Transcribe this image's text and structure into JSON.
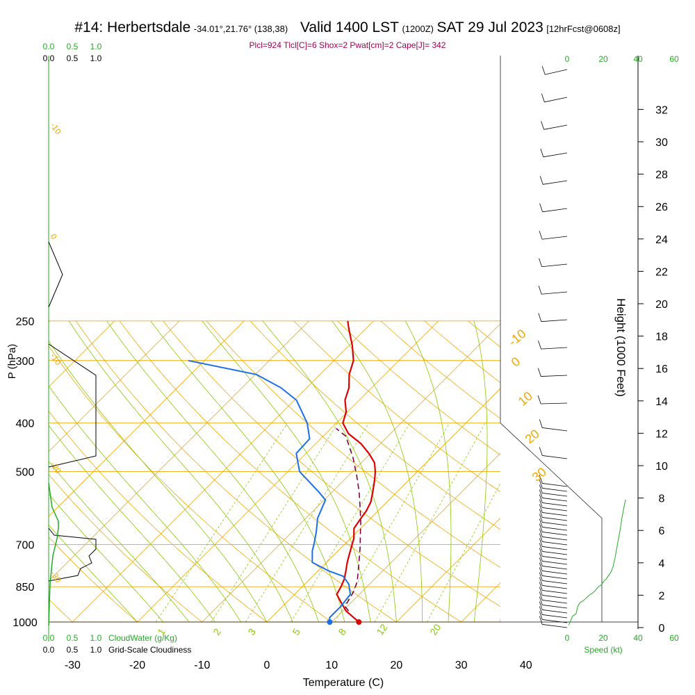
{
  "header": {
    "station": "#14: Herbertsdale",
    "coords": "-34.01°,21.76° (138,38)",
    "valid": "Valid 1400 LST",
    "zulu": "(1200Z)",
    "date": "SAT 29 Jul 2023",
    "forecast": "[12hrFcst@0608z]",
    "indices": "Plcl=924 Tlcl[C]=6 Shox=2 Pwat[cm]=2 Cape[J]= 342"
  },
  "colors": {
    "temperature": "#dd0000",
    "dewpoint": "#1a6fe8",
    "parcel": "#800040",
    "isotherm": "#f0a800",
    "dry_adiabat": "#f0a800",
    "moist_adiabat": "#88c800",
    "mixing_ratio": "#88c800",
    "wind_speed": "#22aa22",
    "cloud": "#22aa22"
  },
  "chart_data": {
    "type": "skew-t",
    "xlabel": "Temperature (C)",
    "ylabel": "P (hPa)",
    "y2label": "Height (1000 Feet)",
    "x_ticks": [
      "-30",
      "-20",
      "-10",
      "0",
      "10",
      "20",
      "30",
      "40"
    ],
    "y_ticks": [
      "250",
      "300",
      "400",
      "500",
      "700",
      "850",
      "1000"
    ],
    "height_ticks": [
      "0",
      "2",
      "4",
      "6",
      "8",
      "10",
      "12",
      "14",
      "16",
      "18",
      "20",
      "22",
      "24",
      "26",
      "28",
      "30",
      "32"
    ],
    "isotherm_labels": [
      "-10",
      "0",
      "10",
      "20",
      "30"
    ],
    "mixing_ratio_labels": [
      "1",
      "2",
      "3",
      "5",
      "8",
      "12",
      "20"
    ],
    "left_panel": {
      "top_scale_green": [
        "0.0",
        "0.5",
        "1.0"
      ],
      "top_scale_black": [
        "0.0",
        "0.5",
        "1.0"
      ],
      "bottom_scale_green": [
        "0.0",
        "0.5",
        "1.0"
      ],
      "bottom_scale_black": [
        "0.0",
        "0.5",
        "1.0"
      ],
      "cloud_water_label": "CloudWater (g/Kg)",
      "cloudiness_label": "Grid-Scale Cloudiness",
      "left_isotherm_labels": [
        "-10",
        "0",
        "-10",
        "-20",
        "-30"
      ]
    },
    "wind_panel": {
      "scale_green": [
        "0",
        "20",
        "40",
        "60"
      ],
      "scale_black": [
        "0",
        "20",
        "40"
      ],
      "bottom_green": [
        "0",
        "20",
        "40",
        "60"
      ],
      "bottom_black": [
        "0",
        "20"
      ],
      "speed_label": "Speed (kt)"
    },
    "series": [
      {
        "name": "Temperature",
        "points": [
          [
            14.2,
            1000
          ],
          [
            10.5,
            950
          ],
          [
            8.5,
            915
          ],
          [
            6.5,
            880
          ],
          [
            6.0,
            850
          ],
          [
            5.3,
            820
          ],
          [
            4.3,
            790
          ],
          [
            3.2,
            760
          ],
          [
            2.2,
            730
          ],
          [
            1.2,
            700
          ],
          [
            0.5,
            680
          ],
          [
            -1.0,
            650
          ],
          [
            -1.5,
            620
          ],
          [
            -1.8,
            600
          ],
          [
            -2.5,
            575
          ],
          [
            -3.7,
            550
          ],
          [
            -5.3,
            520
          ],
          [
            -6.5,
            500
          ],
          [
            -8.0,
            480
          ],
          [
            -10.3,
            460
          ],
          [
            -13.0,
            440
          ],
          [
            -16.5,
            420
          ],
          [
            -19.0,
            400
          ],
          [
            -20.2,
            380
          ],
          [
            -22.2,
            360
          ],
          [
            -23.5,
            340
          ],
          [
            -25.5,
            320
          ],
          [
            -27.0,
            300
          ],
          [
            -29.5,
            280
          ],
          [
            -32.5,
            260
          ],
          [
            -34.0,
            250
          ]
        ]
      },
      {
        "name": "Dewpoint",
        "points": [
          [
            9.7,
            1000
          ],
          [
            9.0,
            980
          ],
          [
            9.0,
            930
          ],
          [
            8.6,
            880
          ],
          [
            6.8,
            840
          ],
          [
            4.7,
            810
          ],
          [
            1.6,
            790
          ],
          [
            -2.2,
            760
          ],
          [
            -4.0,
            720
          ],
          [
            -4.7,
            700
          ],
          [
            -6.3,
            660
          ],
          [
            -8.2,
            620
          ],
          [
            -9.8,
            570
          ],
          [
            -12.0,
            550
          ],
          [
            -18.2,
            500
          ],
          [
            -21.5,
            460
          ],
          [
            -21.7,
            430
          ],
          [
            -24.5,
            400
          ],
          [
            -29.7,
            360
          ],
          [
            -34.0,
            340
          ],
          [
            -39.8,
            320
          ],
          [
            -52.5,
            300
          ]
        ]
      },
      {
        "name": "Parcel",
        "points": [
          [
            10.9,
            950
          ],
          [
            9.6,
            930
          ],
          [
            9.2,
            900
          ],
          [
            8.7,
            870
          ],
          [
            7.7,
            830
          ],
          [
            6.2,
            790
          ],
          [
            4.6,
            750
          ],
          [
            2.9,
            710
          ],
          [
            1.0,
            670
          ],
          [
            -1.0,
            630
          ],
          [
            -3.3,
            590
          ],
          [
            -5.8,
            550
          ],
          [
            -8.7,
            510
          ],
          [
            -12.0,
            470
          ],
          [
            -16.5,
            425
          ],
          [
            -19.2,
            410
          ]
        ]
      }
    ],
    "wind_speed_profile": [
      [
        1,
        0.15
      ],
      [
        3,
        0.7
      ],
      [
        5,
        0.85
      ],
      [
        6,
        1.3
      ],
      [
        7,
        1.5
      ],
      [
        8,
        1.6
      ],
      [
        9,
        1.65
      ],
      [
        10,
        1.75
      ],
      [
        11,
        1.85
      ],
      [
        12,
        1.95
      ],
      [
        13,
        2.05
      ],
      [
        14,
        2.1
      ],
      [
        15,
        2.2
      ],
      [
        16,
        2.3
      ],
      [
        17,
        2.45
      ],
      [
        18,
        2.55
      ],
      [
        19,
        2.6
      ],
      [
        20,
        2.75
      ],
      [
        21,
        2.9
      ],
      [
        22,
        3.0
      ],
      [
        23,
        3.15
      ],
      [
        24,
        3.3
      ],
      [
        25,
        3.5
      ],
      [
        26,
        3.8
      ],
      [
        27,
        4.3
      ],
      [
        28,
        4.9
      ],
      [
        29,
        5.5
      ],
      [
        30,
        6.1
      ],
      [
        31,
        6.8
      ],
      [
        32,
        7.4
      ],
      [
        33,
        7.9
      ]
    ]
  }
}
